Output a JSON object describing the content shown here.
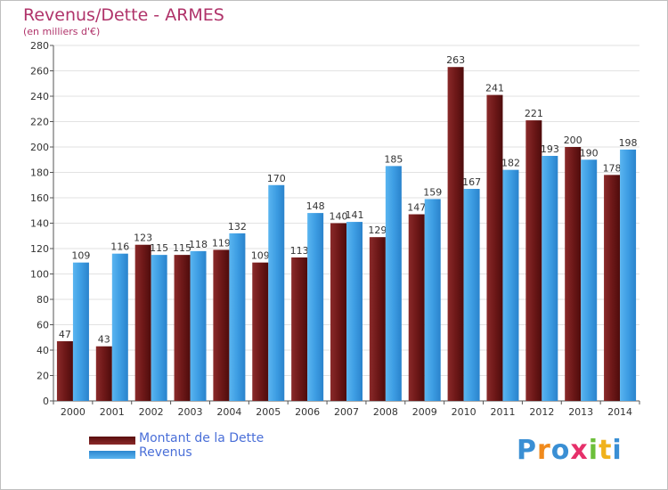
{
  "colors": {
    "debt": "#7a1f1f",
    "revenue": "#3a9be0",
    "title": "#b0336a",
    "legend_text": "#4a6fd8",
    "grid": "#e2e2e2",
    "axis": "#555555"
  },
  "logo": {
    "letters": [
      {
        "char": "P",
        "color": "#3a8fd4"
      },
      {
        "char": "r",
        "color": "#f08a1c"
      },
      {
        "char": "o",
        "color": "#3a8fd4"
      },
      {
        "char": "x",
        "color": "#e6306a"
      },
      {
        "char": "i",
        "color": "#6cbf3a"
      },
      {
        "char": "t",
        "color": "#f0b21c"
      },
      {
        "char": "i",
        "color": "#3a8fd4"
      }
    ]
  },
  "chart_data": {
    "type": "bar",
    "title": "Revenus/Dette - ARMES",
    "subtitle": "(en milliers d'€)",
    "categories": [
      "2000",
      "2001",
      "2002",
      "2003",
      "2004",
      "2005",
      "2006",
      "2007",
      "2008",
      "2009",
      "2010",
      "2011",
      "2012",
      "2013",
      "2014"
    ],
    "series": [
      {
        "name": "Montant de la Dette",
        "values": [
          47,
          43,
          123,
          115,
          119,
          109,
          113,
          140,
          129,
          147,
          263,
          241,
          221,
          200,
          178
        ]
      },
      {
        "name": "Revenus",
        "values": [
          109,
          116,
          115,
          118,
          132,
          170,
          148,
          141,
          185,
          159,
          167,
          182,
          193,
          190,
          198
        ]
      }
    ],
    "ylim": [
      0,
      280
    ],
    "yticks": [
      0,
      20,
      40,
      60,
      80,
      100,
      120,
      140,
      160,
      180,
      200,
      220,
      240,
      260,
      280
    ],
    "grid": true,
    "legend_position": "bottom-left"
  }
}
